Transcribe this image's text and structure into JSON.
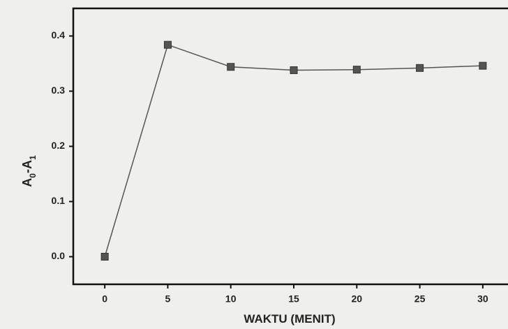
{
  "chart_data": {
    "type": "line",
    "xlabel": "WAKTU (MENIT)",
    "ylabel": [
      "A",
      "0",
      "-A",
      "1"
    ],
    "x": [
      0,
      5,
      10,
      15,
      20,
      25,
      30
    ],
    "series": [
      {
        "color": "#555555",
        "values": [
          0.0,
          0.384,
          0.344,
          0.338,
          0.339,
          0.342,
          0.346
        ]
      }
    ],
    "xlim": [
      -2.5,
      32
    ],
    "ylim": [
      -0.05,
      0.45
    ],
    "xticks": [
      0,
      5,
      10,
      15,
      20,
      25,
      30
    ],
    "yticks": [
      {
        "value": 0,
        "label": "0.0"
      },
      0.1,
      0.2,
      0.3,
      0.4
    ],
    "grid": false
  }
}
